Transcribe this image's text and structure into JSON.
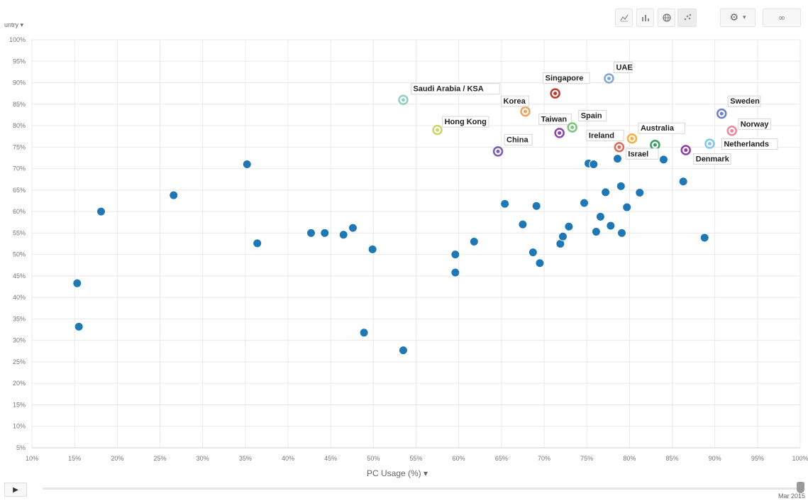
{
  "header": {
    "legend_dropdown": "untry ▾"
  },
  "toolbar": {
    "line_icon": "line-chart-icon",
    "bar_icon": "bar-chart-icon",
    "map_icon": "globe-icon",
    "scatter_icon": "scatter-chart-icon",
    "settings_icon": "gear-icon",
    "settings_caret": "▾",
    "link_icon": "link-icon",
    "link_label": "∞"
  },
  "timeline": {
    "play_label": "▶",
    "date_label": "Mar 2015",
    "position": 1.0
  },
  "chart_data": {
    "type": "scatter",
    "xlabel": "PC Usage (%) ▾",
    "ylabel": "",
    "xlim": [
      10,
      100
    ],
    "ylim": [
      5,
      100
    ],
    "x_ticks": [
      "10%",
      "15%",
      "20%",
      "25%",
      "30%",
      "35%",
      "40%",
      "45%",
      "50%",
      "55%",
      "60%",
      "65%",
      "70%",
      "75%",
      "80%",
      "85%",
      "90%",
      "95%",
      "100%"
    ],
    "y_ticks": [
      "100%",
      "95%",
      "90%",
      "85%",
      "80%",
      "75%",
      "70%",
      "65%",
      "60%",
      "55%",
      "50%",
      "45%",
      "40%",
      "35%",
      "30%",
      "25%",
      "20%",
      "15%",
      "10%",
      "5%"
    ],
    "grid": true,
    "default_color": "#1f77b4",
    "highlighted": [
      {
        "name": "Saudi Arabia / KSA",
        "x": 53.5,
        "y": 86.0,
        "color": "#8fd1c4"
      },
      {
        "name": "Hong Kong",
        "x": 57.5,
        "y": 79.0,
        "color": "#c8d66b"
      },
      {
        "name": "Korea",
        "x": 67.8,
        "y": 83.3,
        "color": "#f0a35e"
      },
      {
        "name": "Singapore",
        "x": 71.3,
        "y": 87.5,
        "color": "#c0392b"
      },
      {
        "name": "UAE",
        "x": 77.6,
        "y": 91.0,
        "color": "#7fa7d6"
      },
      {
        "name": "Taiwan",
        "x": 71.8,
        "y": 78.3,
        "color": "#8e44ad"
      },
      {
        "name": "Spain",
        "x": 73.3,
        "y": 79.6,
        "color": "#7cc47f"
      },
      {
        "name": "China",
        "x": 64.6,
        "y": 74.0,
        "color": "#7b5db3"
      },
      {
        "name": "Ireland",
        "x": 78.8,
        "y": 75.0,
        "color": "#e06a5a"
      },
      {
        "name": "Australia",
        "x": 80.3,
        "y": 77.0,
        "color": "#f5b041"
      },
      {
        "name": "Israel",
        "x": 83.0,
        "y": 75.5,
        "color": "#3a9e5f"
      },
      {
        "name": "Denmark",
        "x": 86.6,
        "y": 74.3,
        "color": "#8e3fa8"
      },
      {
        "name": "Netherlands",
        "x": 89.4,
        "y": 75.8,
        "color": "#7fc8e8"
      },
      {
        "name": "Sweden",
        "x": 90.8,
        "y": 82.8,
        "color": "#6b7fcf"
      },
      {
        "name": "Norway",
        "x": 92.0,
        "y": 78.8,
        "color": "#e98aa4"
      }
    ],
    "points": [
      {
        "x": 15.3,
        "y": 43.3
      },
      {
        "x": 15.5,
        "y": 33.2
      },
      {
        "x": 18.1,
        "y": 60.0
      },
      {
        "x": 26.6,
        "y": 63.8
      },
      {
        "x": 35.2,
        "y": 71.0
      },
      {
        "x": 36.4,
        "y": 52.6
      },
      {
        "x": 42.7,
        "y": 55.0
      },
      {
        "x": 44.3,
        "y": 55.0
      },
      {
        "x": 46.5,
        "y": 54.6
      },
      {
        "x": 47.6,
        "y": 56.2
      },
      {
        "x": 48.9,
        "y": 31.8
      },
      {
        "x": 49.9,
        "y": 51.2
      },
      {
        "x": 53.5,
        "y": 27.7
      },
      {
        "x": 59.6,
        "y": 50.0
      },
      {
        "x": 59.6,
        "y": 45.8
      },
      {
        "x": 61.8,
        "y": 53.0
      },
      {
        "x": 65.4,
        "y": 61.8
      },
      {
        "x": 67.5,
        "y": 57.0
      },
      {
        "x": 68.7,
        "y": 50.5
      },
      {
        "x": 69.1,
        "y": 61.3
      },
      {
        "x": 69.5,
        "y": 48.0
      },
      {
        "x": 71.9,
        "y": 52.5
      },
      {
        "x": 72.2,
        "y": 54.2
      },
      {
        "x": 72.9,
        "y": 56.5
      },
      {
        "x": 74.7,
        "y": 62.0
      },
      {
        "x": 75.2,
        "y": 71.2
      },
      {
        "x": 75.8,
        "y": 71.0
      },
      {
        "x": 76.1,
        "y": 55.3
      },
      {
        "x": 76.6,
        "y": 58.8
      },
      {
        "x": 77.2,
        "y": 64.5
      },
      {
        "x": 77.8,
        "y": 56.7
      },
      {
        "x": 78.6,
        "y": 72.3
      },
      {
        "x": 79.0,
        "y": 65.9
      },
      {
        "x": 79.1,
        "y": 55.0
      },
      {
        "x": 79.7,
        "y": 61.0
      },
      {
        "x": 81.2,
        "y": 64.4
      },
      {
        "x": 84.0,
        "y": 72.1
      },
      {
        "x": 86.3,
        "y": 67.0
      },
      {
        "x": 88.8,
        "y": 53.9
      }
    ]
  }
}
